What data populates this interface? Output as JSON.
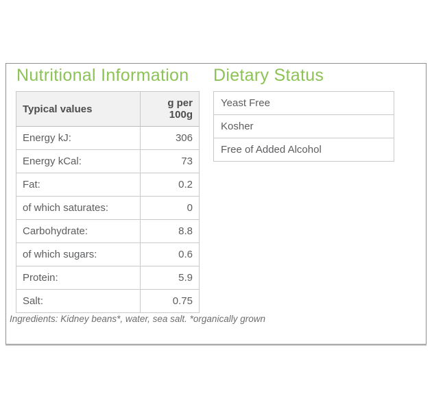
{
  "theme": {
    "accent_green": "#8dc356",
    "text_gray": "#5c5d5f",
    "header_text_gray": "#4c4d4f",
    "table_border": "#c9c9c9",
    "panel_border": "#8f8f8f",
    "header_row_background": "#f1f1f1"
  },
  "nutritional": {
    "title": "Nutritional Information",
    "table": {
      "header": {
        "label": "Typical values",
        "value": "g per 100g"
      },
      "rows": [
        {
          "label": "Energy kJ:",
          "value": "306"
        },
        {
          "label": "Energy kCal:",
          "value": "73"
        },
        {
          "label": "Fat:",
          "value": "0.2"
        },
        {
          "label": "of which saturates:",
          "value": "0"
        },
        {
          "label": "Carbohydrate:",
          "value": "8.8"
        },
        {
          "label": "of which sugars:",
          "value": "0.6"
        },
        {
          "label": "Protein:",
          "value": "5.9"
        },
        {
          "label": "Salt:",
          "value": "0.75"
        }
      ]
    }
  },
  "dietary": {
    "title": "Dietary Status",
    "items": [
      "Yeast Free",
      "Kosher",
      "Free of Added Alcohol"
    ]
  },
  "ingredients": {
    "text": "Ingredients: Kidney beans*, water, sea salt. *organically grown"
  }
}
